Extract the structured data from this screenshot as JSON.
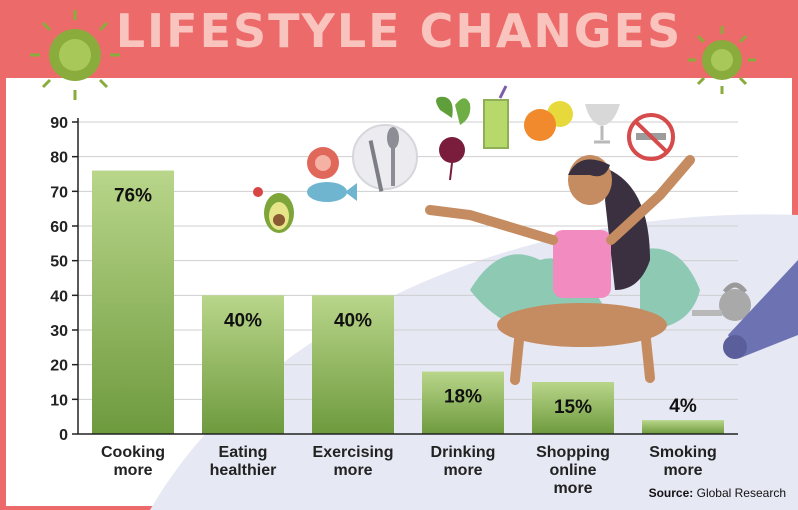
{
  "title": "LIFESTYLE CHANGES",
  "source_label": "Source:",
  "source_name": "Global Research",
  "colors": {
    "header": "#ec6a6a",
    "title_text": "#f9c4bd",
    "bar_top": "#b9d68a",
    "bar_bottom": "#6e9a3e",
    "accent_bg": "#e6e8f3"
  },
  "icons": [
    "virus-icon",
    "avocado-icon",
    "fish-icon",
    "cutlery-icon",
    "beet-icon",
    "juice-icon",
    "fruit-icon",
    "wine-glass-icon",
    "no-smoking-icon",
    "woman-meditating-icon",
    "kettlebell-icon",
    "yoga-mat-icon"
  ],
  "chart_data": {
    "type": "bar",
    "categories": [
      "Cooking\nmore",
      "Eating\nhealthier",
      "Exercising\nmore",
      "Drinking\nmore",
      "Shopping\nonline\nmore",
      "Smoking\nmore"
    ],
    "values": [
      76,
      40,
      40,
      18,
      15,
      4
    ],
    "value_labels": [
      "76%",
      "40%",
      "40%",
      "18%",
      "15%",
      "4%"
    ],
    "ylim": [
      0,
      90
    ],
    "yticks": [
      "0",
      "10",
      "20",
      "30",
      "40",
      "50",
      "60",
      "70",
      "80",
      "90"
    ],
    "grid": true
  }
}
